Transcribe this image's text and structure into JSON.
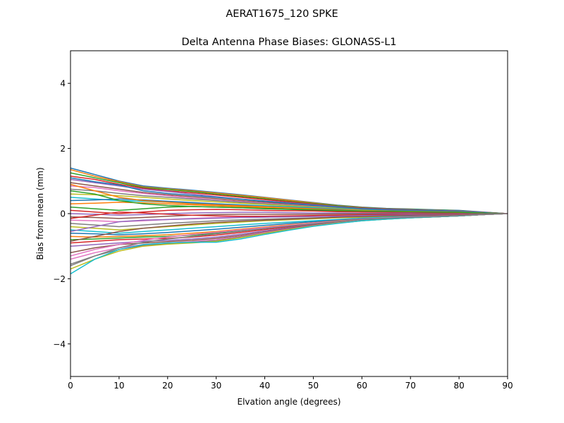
{
  "chart_data": {
    "type": "line",
    "suptitle": "AERAT1675_120   SPKE",
    "title": "Delta Antenna Phase Biases: GLONASS-L1",
    "xlabel": "Elvation angle (degrees)",
    "ylabel": "Bias from mean (mm)",
    "xlim": [
      0,
      90
    ],
    "ylim": [
      -5,
      5
    ],
    "xticks": [
      0,
      10,
      20,
      30,
      40,
      50,
      60,
      70,
      80,
      90
    ],
    "yticks": [
      -4,
      -2,
      0,
      2,
      4
    ],
    "xtick_labels": [
      "0",
      "10",
      "20",
      "30",
      "40",
      "50",
      "60",
      "70",
      "80",
      "90"
    ],
    "ytick_labels": [
      "−4",
      "−2",
      "0",
      "2",
      "4"
    ],
    "grid": false,
    "legend": "none",
    "x": [
      0,
      5,
      10,
      15,
      20,
      25,
      30,
      35,
      40,
      45,
      50,
      55,
      60,
      65,
      70,
      75,
      80,
      85,
      90
    ],
    "colors": [
      "#1f77b4",
      "#ff7f0e",
      "#2ca02c",
      "#d62728",
      "#9467bd",
      "#8c564b",
      "#e377c2",
      "#7f7f7f",
      "#bcbd22",
      "#17becf"
    ],
    "series": [
      {
        "values": [
          1.4,
          1.2,
          1.0,
          0.85,
          0.78,
          0.72,
          0.65,
          0.58,
          0.5,
          0.42,
          0.34,
          0.26,
          0.2,
          0.16,
          0.14,
          0.12,
          0.1,
          0.05,
          0.0
        ]
      },
      {
        "values": [
          1.35,
          1.15,
          0.98,
          0.82,
          0.76,
          0.7,
          0.63,
          0.56,
          0.49,
          0.41,
          0.33,
          0.25,
          0.19,
          0.15,
          0.13,
          0.11,
          0.09,
          0.04,
          0.0
        ]
      },
      {
        "values": [
          1.25,
          1.1,
          0.95,
          0.8,
          0.74,
          0.68,
          0.6,
          0.53,
          0.46,
          0.38,
          0.31,
          0.24,
          0.18,
          0.15,
          0.13,
          0.11,
          0.09,
          0.04,
          0.0
        ]
      },
      {
        "values": [
          1.15,
          1.05,
          0.9,
          0.78,
          0.7,
          0.64,
          0.57,
          0.5,
          0.43,
          0.36,
          0.29,
          0.22,
          0.17,
          0.14,
          0.12,
          0.1,
          0.08,
          0.04,
          0.0
        ]
      },
      {
        "values": [
          1.05,
          0.95,
          0.85,
          0.75,
          0.68,
          0.6,
          0.52,
          0.45,
          0.39,
          0.33,
          0.27,
          0.21,
          0.16,
          0.13,
          0.11,
          0.1,
          0.08,
          0.04,
          0.0
        ]
      },
      {
        "values": [
          0.95,
          0.85,
          0.75,
          0.65,
          0.58,
          0.52,
          0.46,
          0.4,
          0.35,
          0.3,
          0.24,
          0.19,
          0.15,
          0.12,
          0.1,
          0.09,
          0.07,
          0.03,
          0.0
        ]
      },
      {
        "values": [
          0.85,
          0.8,
          0.7,
          0.62,
          0.55,
          0.48,
          0.42,
          0.37,
          0.32,
          0.27,
          0.22,
          0.18,
          0.14,
          0.11,
          0.1,
          0.08,
          0.07,
          0.03,
          0.0
        ]
      },
      {
        "values": [
          0.75,
          0.7,
          0.62,
          0.55,
          0.5,
          0.45,
          0.4,
          0.35,
          0.3,
          0.26,
          0.21,
          0.17,
          0.13,
          0.11,
          0.09,
          0.08,
          0.06,
          0.03,
          0.0
        ]
      },
      {
        "values": [
          0.6,
          0.58,
          0.55,
          0.5,
          0.45,
          0.4,
          0.36,
          0.32,
          0.28,
          0.24,
          0.2,
          0.16,
          0.12,
          0.1,
          0.09,
          0.08,
          0.06,
          0.03,
          0.0
        ]
      },
      {
        "values": [
          0.5,
          0.45,
          0.4,
          0.38,
          0.35,
          0.32,
          0.3,
          0.27,
          0.24,
          0.21,
          0.18,
          0.14,
          0.11,
          0.09,
          0.08,
          0.07,
          0.05,
          0.02,
          0.0
        ]
      },
      {
        "values": [
          0.4,
          0.42,
          0.45,
          0.42,
          0.38,
          0.34,
          0.3,
          0.26,
          0.22,
          0.19,
          0.16,
          0.13,
          0.1,
          0.08,
          0.07,
          0.06,
          0.05,
          0.02,
          0.0
        ]
      },
      {
        "values": [
          0.3,
          0.32,
          0.35,
          0.33,
          0.3,
          0.27,
          0.24,
          0.21,
          0.18,
          0.15,
          0.13,
          0.1,
          0.08,
          0.07,
          0.06,
          0.05,
          0.04,
          0.02,
          0.0
        ]
      },
      {
        "values": [
          0.2,
          0.15,
          0.1,
          0.15,
          0.2,
          0.22,
          0.2,
          0.18,
          0.15,
          0.13,
          0.1,
          0.08,
          0.07,
          0.06,
          0.05,
          0.04,
          0.03,
          0.01,
          0.0
        ]
      },
      {
        "values": [
          0.1,
          0.05,
          0.0,
          0.05,
          0.1,
          0.12,
          0.13,
          0.12,
          0.1,
          0.09,
          0.08,
          0.06,
          0.05,
          0.04,
          0.03,
          0.03,
          0.02,
          0.01,
          0.0
        ]
      },
      {
        "values": [
          0.0,
          -0.02,
          -0.05,
          -0.03,
          0.0,
          0.02,
          0.03,
          0.04,
          0.04,
          0.03,
          0.02,
          0.02,
          0.01,
          0.01,
          0.01,
          0.0,
          0.0,
          0.0,
          0.0
        ]
      },
      {
        "values": [
          -0.1,
          -0.12,
          -0.15,
          -0.12,
          -0.08,
          -0.05,
          -0.03,
          -0.02,
          -0.02,
          -0.02,
          -0.02,
          -0.01,
          -0.01,
          -0.01,
          -0.01,
          0.0,
          0.0,
          0.0,
          0.0
        ]
      },
      {
        "values": [
          -0.2,
          -0.22,
          -0.25,
          -0.22,
          -0.18,
          -0.15,
          -0.12,
          -0.1,
          -0.09,
          -0.08,
          -0.07,
          -0.06,
          -0.05,
          -0.04,
          -0.03,
          -0.03,
          -0.02,
          -0.01,
          0.0
        ]
      },
      {
        "values": [
          -0.3,
          -0.35,
          -0.4,
          -0.35,
          -0.3,
          -0.26,
          -0.22,
          -0.19,
          -0.17,
          -0.15,
          -0.13,
          -0.11,
          -0.09,
          -0.07,
          -0.06,
          -0.05,
          -0.04,
          -0.02,
          0.0
        ]
      },
      {
        "values": [
          -0.4,
          -0.45,
          -0.5,
          -0.45,
          -0.4,
          -0.35,
          -0.3,
          -0.26,
          -0.22,
          -0.19,
          -0.16,
          -0.13,
          -0.11,
          -0.09,
          -0.07,
          -0.06,
          -0.05,
          -0.02,
          0.0
        ]
      },
      {
        "values": [
          -0.5,
          -0.55,
          -0.6,
          -0.55,
          -0.5,
          -0.45,
          -0.4,
          -0.35,
          -0.3,
          -0.26,
          -0.22,
          -0.18,
          -0.14,
          -0.11,
          -0.09,
          -0.07,
          -0.05,
          -0.02,
          0.0
        ]
      },
      {
        "values": [
          -0.6,
          -0.62,
          -0.65,
          -0.62,
          -0.58,
          -0.53,
          -0.48,
          -0.42,
          -0.36,
          -0.3,
          -0.25,
          -0.2,
          -0.16,
          -0.13,
          -0.1,
          -0.08,
          -0.06,
          -0.03,
          0.0
        ]
      },
      {
        "values": [
          -0.7,
          -0.72,
          -0.7,
          -0.68,
          -0.65,
          -0.6,
          -0.55,
          -0.48,
          -0.41,
          -0.34,
          -0.28,
          -0.22,
          -0.17,
          -0.14,
          -0.11,
          -0.09,
          -0.07,
          -0.03,
          0.0
        ]
      },
      {
        "values": [
          -0.8,
          -0.78,
          -0.75,
          -0.72,
          -0.7,
          -0.66,
          -0.6,
          -0.53,
          -0.45,
          -0.37,
          -0.3,
          -0.24,
          -0.18,
          -0.14,
          -0.11,
          -0.09,
          -0.07,
          -0.03,
          0.0
        ]
      },
      {
        "values": [
          -0.9,
          -0.85,
          -0.8,
          -0.78,
          -0.76,
          -0.72,
          -0.66,
          -0.58,
          -0.49,
          -0.4,
          -0.32,
          -0.25,
          -0.19,
          -0.15,
          -0.12,
          -0.1,
          -0.07,
          -0.03,
          0.0
        ]
      },
      {
        "values": [
          -1.0,
          -0.95,
          -0.9,
          -0.85,
          -0.82,
          -0.78,
          -0.72,
          -0.63,
          -0.53,
          -0.43,
          -0.34,
          -0.26,
          -0.2,
          -0.15,
          -0.12,
          -0.1,
          -0.07,
          -0.03,
          0.0
        ]
      },
      {
        "values": [
          -1.2,
          -1.05,
          -0.95,
          -0.9,
          -0.86,
          -0.82,
          -0.76,
          -0.67,
          -0.56,
          -0.45,
          -0.35,
          -0.27,
          -0.2,
          -0.15,
          -0.12,
          -0.1,
          -0.07,
          -0.03,
          0.0
        ]
      },
      {
        "values": [
          -1.4,
          -1.2,
          -1.05,
          -0.95,
          -0.9,
          -0.86,
          -0.8,
          -0.7,
          -0.58,
          -0.47,
          -0.37,
          -0.28,
          -0.21,
          -0.16,
          -0.13,
          -0.1,
          -0.07,
          -0.03,
          0.0
        ]
      },
      {
        "values": [
          -1.55,
          -1.3,
          -1.1,
          -0.98,
          -0.92,
          -0.88,
          -0.83,
          -0.72,
          -0.6,
          -0.48,
          -0.38,
          -0.29,
          -0.22,
          -0.17,
          -0.13,
          -0.1,
          -0.07,
          -0.03,
          0.0
        ]
      },
      {
        "values": [
          -1.7,
          -1.4,
          -1.15,
          -1.0,
          -0.94,
          -0.9,
          -0.85,
          -0.74,
          -0.61,
          -0.49,
          -0.38,
          -0.29,
          -0.22,
          -0.17,
          -0.13,
          -0.1,
          -0.07,
          -0.03,
          0.0
        ]
      },
      {
        "values": [
          -1.85,
          -1.4,
          -1.1,
          -0.95,
          -0.9,
          -0.88,
          -0.88,
          -0.78,
          -0.64,
          -0.51,
          -0.39,
          -0.3,
          -0.22,
          -0.17,
          -0.13,
          -0.1,
          -0.07,
          -0.03,
          0.0
        ]
      },
      {
        "values": [
          1.1,
          0.98,
          0.88,
          0.7,
          0.62,
          0.56,
          0.5,
          0.44,
          0.38,
          0.32,
          0.26,
          0.2,
          0.15,
          0.12,
          0.1,
          0.09,
          0.07,
          0.03,
          0.0
        ]
      },
      {
        "values": [
          0.9,
          0.7,
          0.5,
          0.4,
          0.35,
          0.3,
          0.27,
          0.24,
          0.21,
          0.18,
          0.15,
          0.12,
          0.1,
          0.08,
          0.07,
          0.06,
          0.05,
          0.02,
          0.0
        ]
      },
      {
        "values": [
          0.7,
          0.6,
          0.4,
          0.3,
          0.25,
          0.22,
          0.2,
          0.18,
          0.16,
          0.14,
          0.12,
          0.1,
          0.08,
          0.07,
          0.06,
          0.05,
          0.04,
          0.02,
          0.0
        ]
      },
      {
        "values": [
          -0.15,
          -0.05,
          0.05,
          0.02,
          -0.02,
          -0.05,
          -0.07,
          -0.08,
          -0.08,
          -0.07,
          -0.06,
          -0.05,
          -0.04,
          -0.03,
          -0.03,
          -0.02,
          -0.02,
          -0.01,
          0.0
        ]
      },
      {
        "values": [
          -0.55,
          -0.4,
          -0.25,
          -0.2,
          -0.18,
          -0.16,
          -0.14,
          -0.12,
          -0.11,
          -0.1,
          -0.09,
          -0.08,
          -0.06,
          -0.05,
          -0.04,
          -0.03,
          -0.03,
          -0.01,
          0.0
        ]
      },
      {
        "values": [
          -0.85,
          -0.7,
          -0.55,
          -0.45,
          -0.38,
          -0.32,
          -0.27,
          -0.23,
          -0.2,
          -0.17,
          -0.14,
          -0.11,
          -0.09,
          -0.07,
          -0.06,
          -0.05,
          -0.04,
          -0.02,
          0.0
        ]
      },
      {
        "values": [
          -1.3,
          -1.1,
          -0.95,
          -0.82,
          -0.72,
          -0.64,
          -0.57,
          -0.5,
          -0.43,
          -0.36,
          -0.29,
          -0.23,
          -0.17,
          -0.13,
          -0.1,
          -0.08,
          -0.06,
          -0.03,
          0.0
        ]
      },
      {
        "values": [
          -1.6,
          -1.3,
          -1.05,
          -0.88,
          -0.78,
          -0.7,
          -0.62,
          -0.54,
          -0.46,
          -0.38,
          -0.31,
          -0.24,
          -0.18,
          -0.14,
          -0.11,
          -0.09,
          -0.06,
          -0.03,
          0.0
        ]
      }
    ]
  }
}
